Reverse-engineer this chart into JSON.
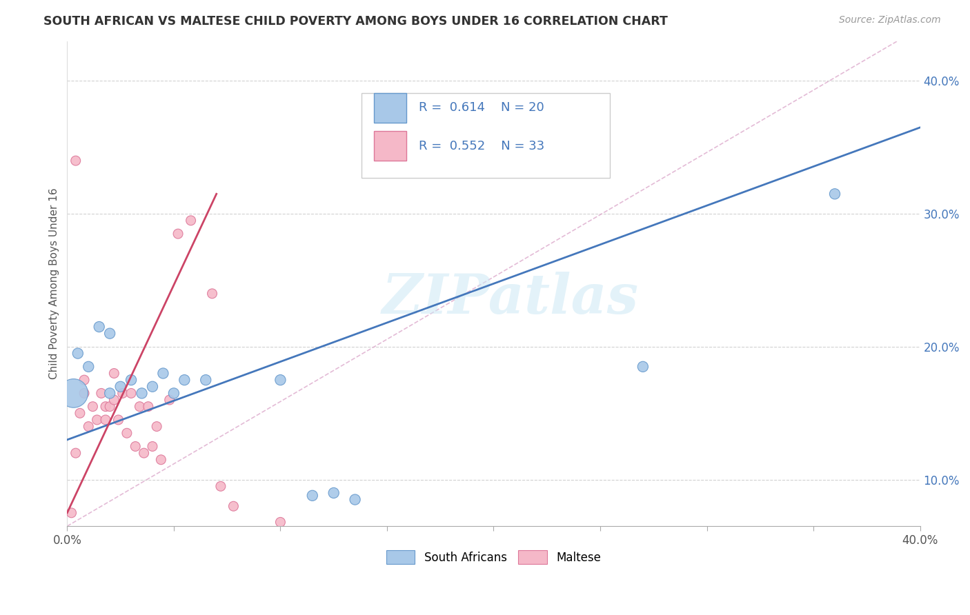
{
  "title": "SOUTH AFRICAN VS MALTESE CHILD POVERTY AMONG BOYS UNDER 16 CORRELATION CHART",
  "source": "Source: ZipAtlas.com",
  "ylabel": "Child Poverty Among Boys Under 16",
  "xlim": [
    0.0,
    0.4
  ],
  "ylim": [
    0.065,
    0.43
  ],
  "xticks": [
    0.0,
    0.05,
    0.1,
    0.15,
    0.2,
    0.25,
    0.3,
    0.35,
    0.4
  ],
  "xtick_labels_show": [
    "0.0%",
    "",
    "",
    "",
    "",
    "",
    "",
    "",
    "40.0%"
  ],
  "yticks": [
    0.1,
    0.2,
    0.3,
    0.4
  ],
  "ytick_labels": [
    "10.0%",
    "20.0%",
    "30.0%",
    "40.0%"
  ],
  "watermark_text": "ZIPatlas",
  "sa_color": "#a8c8e8",
  "sa_edge_color": "#6699cc",
  "maltese_color": "#f5b8c8",
  "maltese_edge_color": "#dd7799",
  "blue_line_color": "#4477bb",
  "pink_line_color": "#cc4466",
  "dashed_line_color": "#ddaacc",
  "grid_color": "#cccccc",
  "title_color": "#333333",
  "source_color": "#999999",
  "legend_r_color": "#4477bb",
  "legend_text_color": "#333333",
  "sa_points_x": [
    0.005,
    0.01,
    0.015,
    0.02,
    0.02,
    0.025,
    0.03,
    0.035,
    0.04,
    0.045,
    0.05,
    0.055,
    0.065,
    0.1,
    0.115,
    0.125,
    0.135,
    0.27,
    0.36,
    0.003
  ],
  "sa_points_y": [
    0.195,
    0.185,
    0.215,
    0.165,
    0.21,
    0.17,
    0.175,
    0.165,
    0.17,
    0.18,
    0.165,
    0.175,
    0.175,
    0.175,
    0.088,
    0.09,
    0.085,
    0.185,
    0.315,
    0.165
  ],
  "sa_sizes": [
    120,
    120,
    120,
    120,
    120,
    120,
    120,
    120,
    120,
    120,
    120,
    120,
    120,
    120,
    120,
    120,
    120,
    120,
    120,
    900
  ],
  "maltese_points_x": [
    0.002,
    0.004,
    0.006,
    0.008,
    0.008,
    0.01,
    0.012,
    0.014,
    0.016,
    0.018,
    0.018,
    0.02,
    0.022,
    0.022,
    0.024,
    0.026,
    0.028,
    0.03,
    0.032,
    0.034,
    0.036,
    0.038,
    0.04,
    0.042,
    0.044,
    0.048,
    0.052,
    0.058,
    0.068,
    0.072,
    0.078,
    0.1,
    0.004
  ],
  "maltese_points_y": [
    0.075,
    0.12,
    0.15,
    0.165,
    0.175,
    0.14,
    0.155,
    0.145,
    0.165,
    0.145,
    0.155,
    0.155,
    0.16,
    0.18,
    0.145,
    0.165,
    0.135,
    0.165,
    0.125,
    0.155,
    0.12,
    0.155,
    0.125,
    0.14,
    0.115,
    0.16,
    0.285,
    0.295,
    0.24,
    0.095,
    0.08,
    0.068,
    0.34
  ],
  "maltese_sizes": [
    100,
    100,
    100,
    100,
    100,
    100,
    100,
    100,
    100,
    100,
    100,
    100,
    100,
    100,
    100,
    100,
    100,
    100,
    100,
    100,
    100,
    100,
    100,
    100,
    100,
    100,
    100,
    100,
    100,
    100,
    100,
    100,
    100
  ],
  "blue_line_x": [
    0.0,
    0.4
  ],
  "blue_line_y": [
    0.13,
    0.365
  ],
  "pink_line_x": [
    0.0,
    0.07
  ],
  "pink_line_y": [
    0.075,
    0.315
  ],
  "dashed_line_x": [
    0.0,
    0.4
  ],
  "dashed_line_y": [
    0.065,
    0.44
  ],
  "bottom_legend": [
    {
      "label": "South Africans",
      "color": "#a8c8e8",
      "edge": "#6699cc"
    },
    {
      "label": "Maltese",
      "color": "#f5b8c8",
      "edge": "#dd7799"
    }
  ]
}
